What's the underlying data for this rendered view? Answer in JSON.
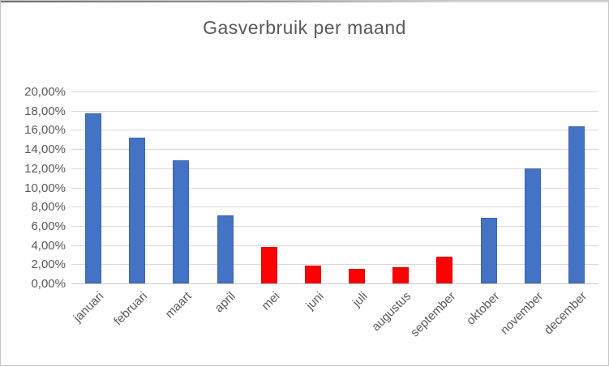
{
  "title": "Gasverbruik per maand",
  "colors": {
    "bar_blue": "#4472C4",
    "bar_red": "#FF0000",
    "gridline": "#D9D9D9",
    "axis_line": "#C9C9C9",
    "text": "#595959"
  },
  "chart_data": {
    "type": "bar",
    "title": "Gasverbruik per maand",
    "xlabel": "",
    "ylabel": "",
    "categories": [
      "januari",
      "februari",
      "maart",
      "april",
      "mei",
      "juni",
      "juli",
      "augustus",
      "september",
      "oktober",
      "november",
      "december"
    ],
    "values": [
      17.7,
      15.2,
      12.8,
      7.1,
      3.8,
      1.9,
      1.5,
      1.7,
      2.8,
      6.8,
      12.0,
      16.4
    ],
    "bar_colors": [
      "#4472C4",
      "#4472C4",
      "#4472C4",
      "#4472C4",
      "#FF0000",
      "#FF0000",
      "#FF0000",
      "#FF0000",
      "#FF0000",
      "#4472C4",
      "#4472C4",
      "#4472C4"
    ],
    "ylim": [
      0,
      20
    ],
    "ytick_step": 2,
    "ytick_values": [
      0,
      2,
      4,
      6,
      8,
      10,
      12,
      14,
      16,
      18,
      20
    ],
    "ytick_labels": [
      "0,00%",
      "2,00%",
      "4,00%",
      "6,00%",
      "8,00%",
      "10,00%",
      "12,00%",
      "14,00%",
      "16,00%",
      "18,00%",
      "20,00%"
    ],
    "grid": true,
    "legend": false,
    "x_label_rotation_deg": 45
  }
}
